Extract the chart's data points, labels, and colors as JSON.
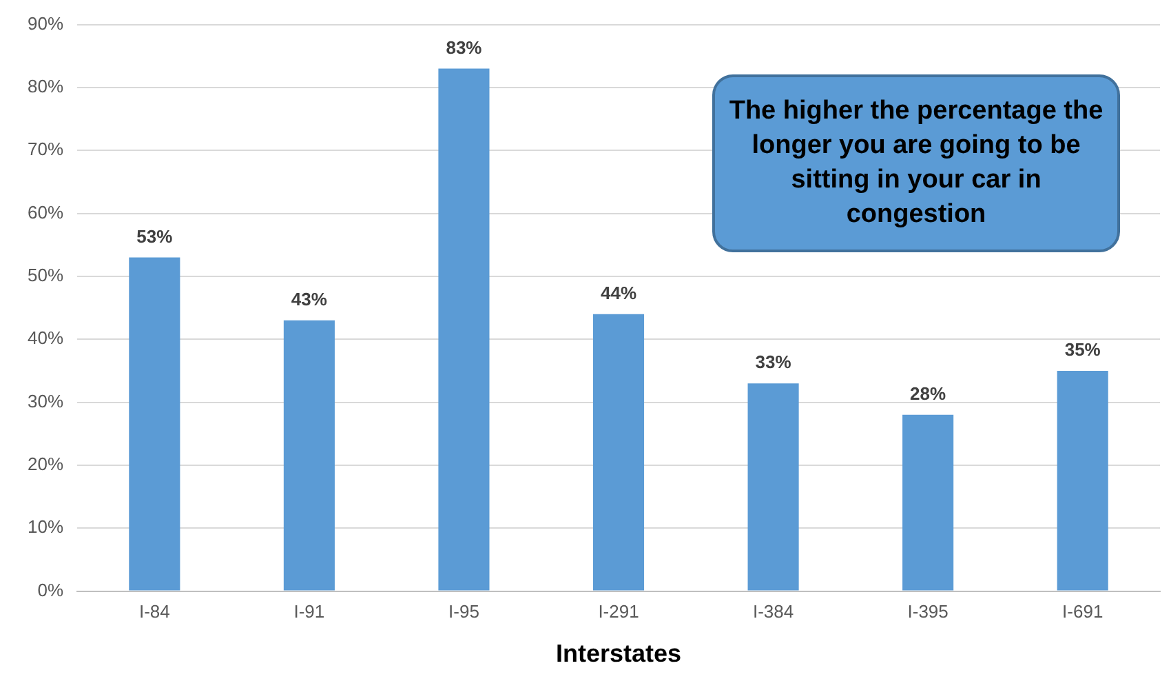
{
  "chart_data": {
    "type": "bar",
    "xlabel": "Interstates",
    "categories": [
      "I-84",
      "I-91",
      "I-95",
      "I-291",
      "I-384",
      "I-395",
      "I-691"
    ],
    "values": [
      53,
      43,
      83,
      44,
      33,
      28,
      35
    ],
    "value_labels": [
      "53%",
      "43%",
      "83%",
      "44%",
      "33%",
      "28%",
      "35%"
    ],
    "color": "#5b9bd5",
    "ylim": [
      0,
      90
    ],
    "yticks": [
      {
        "value": 0,
        "label": "0%"
      },
      {
        "value": 10,
        "label": "10%"
      },
      {
        "value": 20,
        "label": "20%"
      },
      {
        "value": 30,
        "label": "30%"
      },
      {
        "value": 40,
        "label": "40%"
      },
      {
        "value": 50,
        "label": "50%"
      },
      {
        "value": 60,
        "label": "60%"
      },
      {
        "value": 70,
        "label": "70%"
      },
      {
        "value": 80,
        "label": "80%"
      },
      {
        "value": 90,
        "label": "90%"
      }
    ],
    "grid": "y",
    "legend": false,
    "annotations": [
      "The higher the percentage the longer you are going to be sitting in your car in congestion"
    ]
  }
}
